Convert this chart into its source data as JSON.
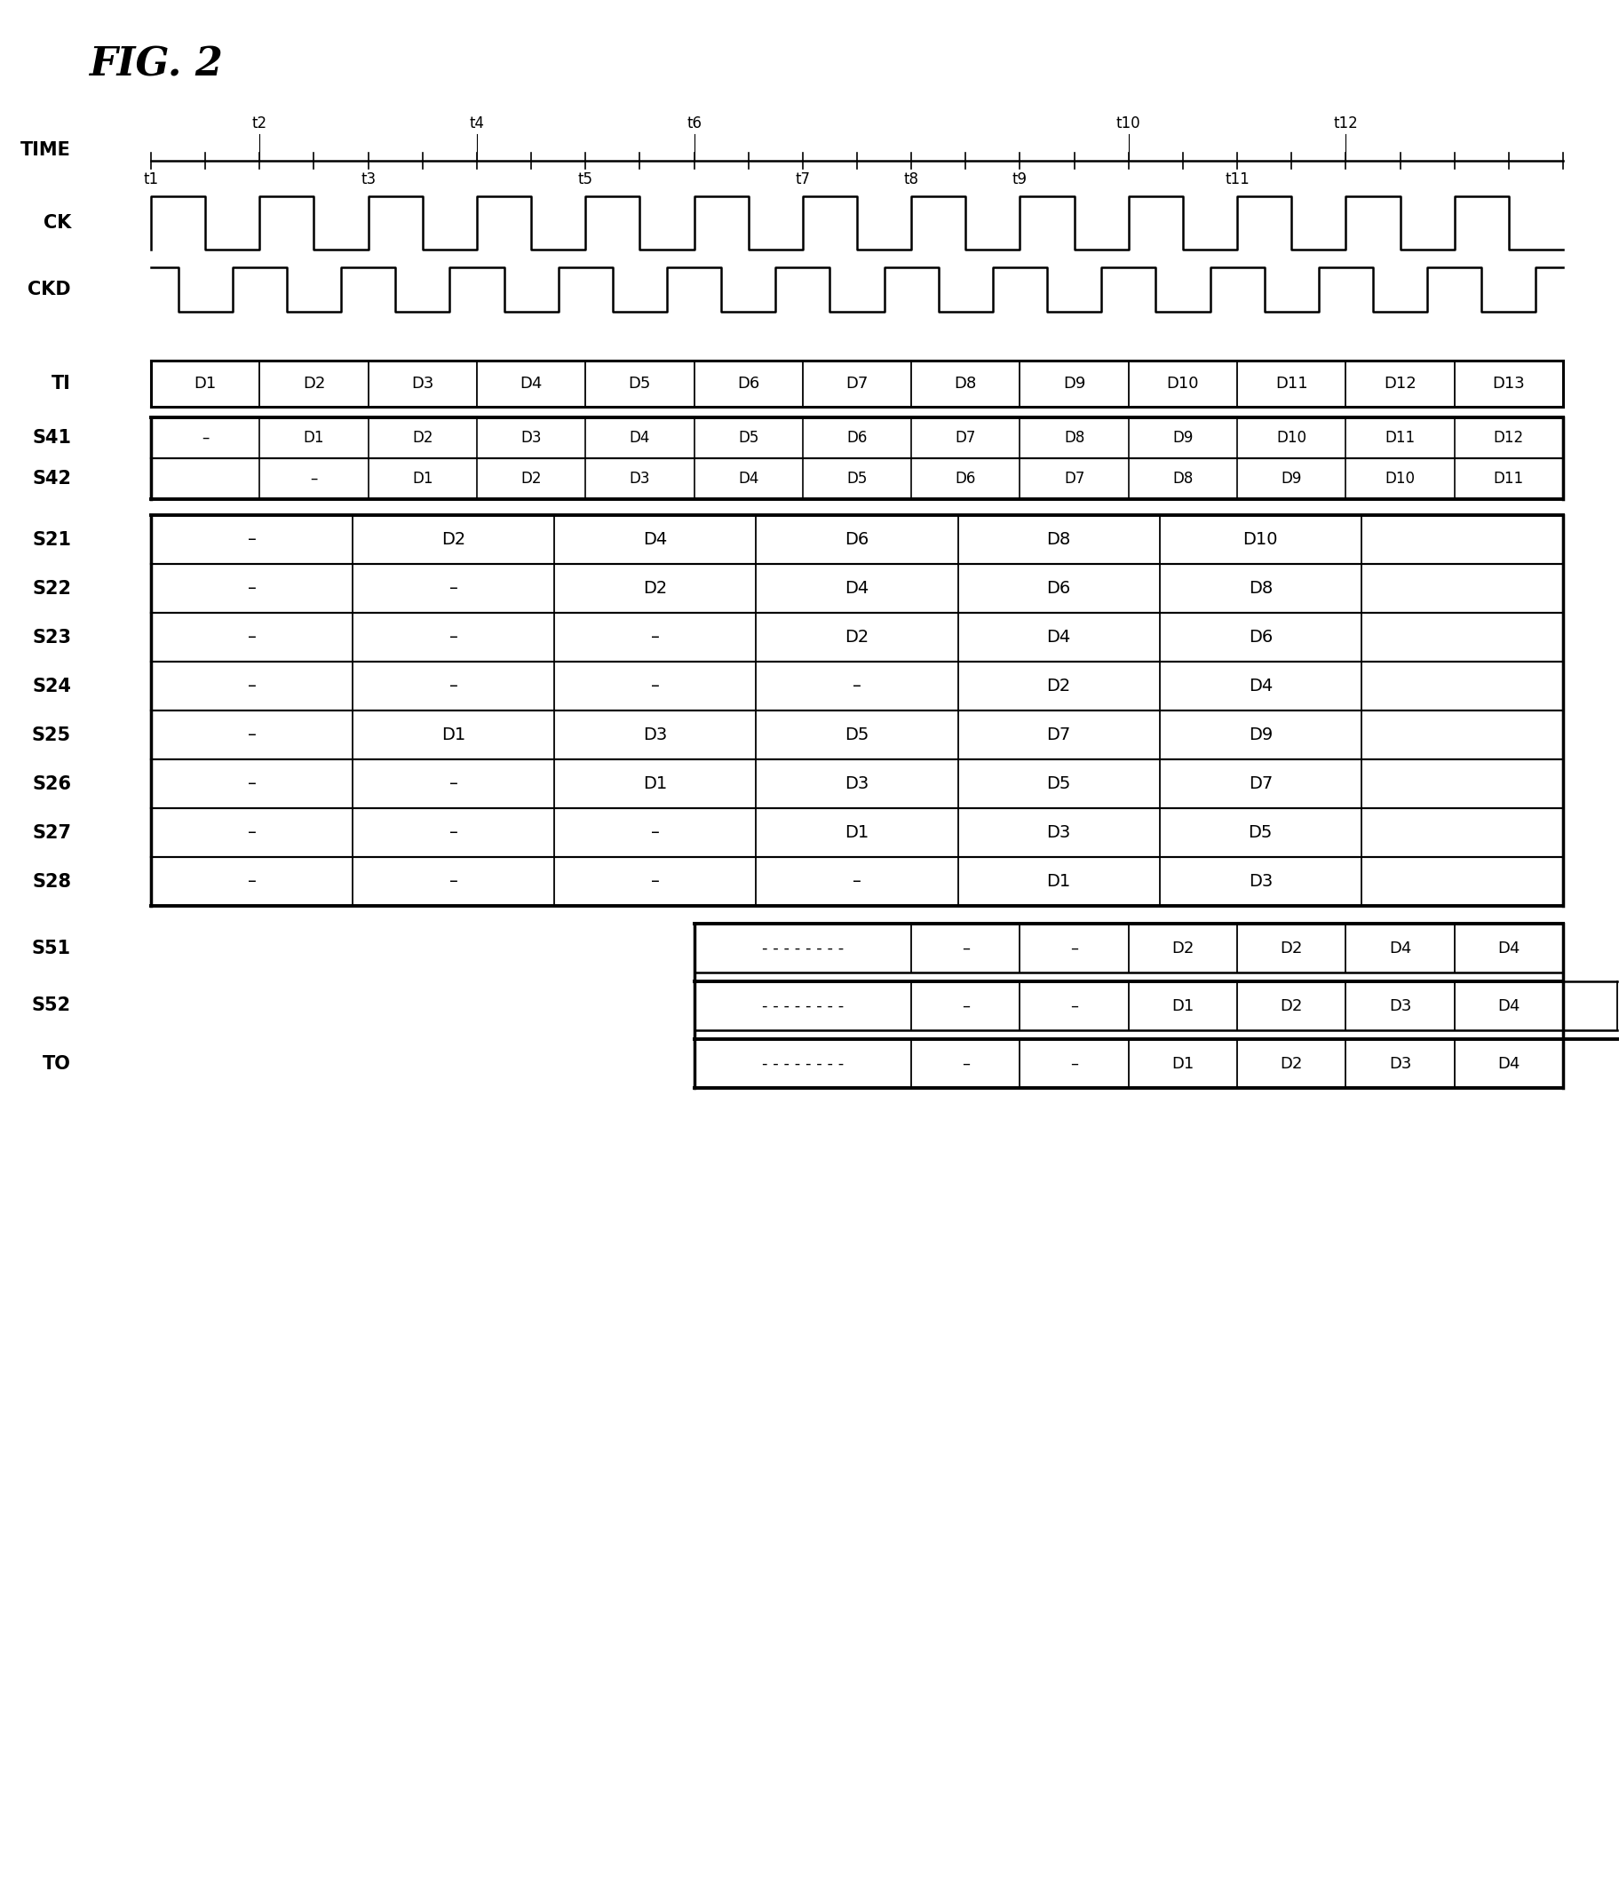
{
  "title": "FIG. 2",
  "fig_width": 18.24,
  "fig_height": 21.36,
  "background_color": "#ffffff",
  "TI_cells": [
    "D1",
    "D2",
    "D3",
    "D4",
    "D5",
    "D6",
    "D7",
    "D8",
    "D9",
    "D10",
    "D11",
    "D12",
    "D13"
  ],
  "S41_cells": [
    "–",
    "D1",
    "D2",
    "D3",
    "D4",
    "D5",
    "D6",
    "D7",
    "D8",
    "D9",
    "D10",
    "D11",
    "D12"
  ],
  "S42_cells": [
    "",
    "–",
    "D1",
    "D2",
    "D3",
    "D4",
    "D5",
    "D6",
    "D7",
    "D8",
    "D9",
    "D10",
    "D11"
  ],
  "S21_cells": [
    "–",
    "D2",
    "D4",
    "D6",
    "D8",
    "D10",
    ""
  ],
  "S22_cells": [
    "–",
    "–",
    "D2",
    "D4",
    "D6",
    "D8",
    ""
  ],
  "S23_cells": [
    "–",
    "–",
    "–",
    "D2",
    "D4",
    "D6",
    ""
  ],
  "S24_cells": [
    "–",
    "–",
    "–",
    "–",
    "D2",
    "D4",
    ""
  ],
  "S25_cells": [
    "–",
    "D1",
    "D3",
    "D5",
    "D7",
    "D9",
    ""
  ],
  "S26_cells": [
    "–",
    "–",
    "D1",
    "D3",
    "D5",
    "D7",
    ""
  ],
  "S27_cells": [
    "–",
    "–",
    "–",
    "D1",
    "D3",
    "D5",
    ""
  ],
  "S28_cells": [
    "–",
    "–",
    "–",
    "–",
    "D1",
    "D3",
    ""
  ]
}
